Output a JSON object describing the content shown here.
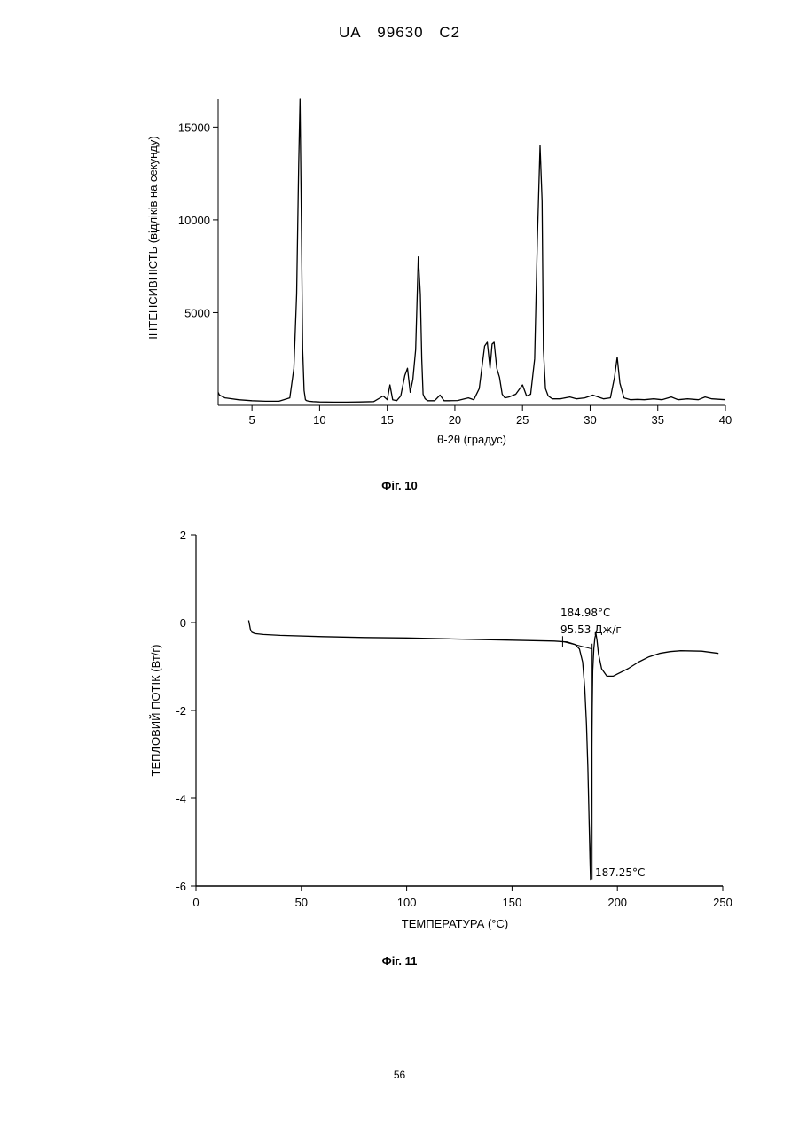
{
  "header": {
    "country": "UA",
    "number": "99630",
    "kind": "C2"
  },
  "page_number": "56",
  "chart_data": [
    {
      "type": "line",
      "caption": "Фіг. 10",
      "xlabel": "θ-2θ (градус)",
      "ylabel": "ІНТЕНСИВНІСТЬ (відліків на секунду)",
      "xlim": [
        2.5,
        40
      ],
      "ylim": [
        0,
        16500
      ],
      "xticks": [
        5,
        10,
        15,
        20,
        25,
        30,
        35,
        40
      ],
      "yticks": [
        5000,
        10000,
        15000
      ],
      "series": [
        {
          "x": [
            2.5,
            2.6,
            3.0,
            4.0,
            5.0,
            6.0,
            7.0,
            7.8,
            8.1,
            8.3,
            8.45,
            8.55,
            8.65,
            8.75,
            8.85,
            8.95,
            9.05,
            9.2,
            9.5,
            10.0,
            11.0,
            12.0,
            13.0,
            14.0,
            14.7,
            15.0,
            15.2,
            15.4,
            15.7,
            16.0,
            16.3,
            16.5,
            16.7,
            16.9,
            17.1,
            17.3,
            17.45,
            17.55,
            17.65,
            17.8,
            18.0,
            18.5,
            18.9,
            19.2,
            19.6,
            20.2,
            21.0,
            21.4,
            21.8,
            22.2,
            22.4,
            22.6,
            22.75,
            22.9,
            23.1,
            23.3,
            23.5,
            23.7,
            24.0,
            24.5,
            25.0,
            25.3,
            25.6,
            25.9,
            26.1,
            26.3,
            26.45,
            26.55,
            26.7,
            26.9,
            27.2,
            27.8,
            28.5,
            29.0,
            29.6,
            30.2,
            30.6,
            31.0,
            31.5,
            31.8,
            32.0,
            32.2,
            32.5,
            33.0,
            33.5,
            34.0,
            34.7,
            35.3,
            36.0,
            36.5,
            37.2,
            38.0,
            38.5,
            39.0,
            40.0
          ],
          "y": [
            700,
            550,
            400,
            300,
            250,
            220,
            220,
            400,
            2000,
            6000,
            13000,
            16500,
            10000,
            3000,
            800,
            300,
            250,
            220,
            200,
            180,
            170,
            170,
            180,
            200,
            500,
            300,
            1100,
            300,
            250,
            500,
            1600,
            2000,
            700,
            1400,
            3000,
            8000,
            6000,
            2500,
            600,
            350,
            250,
            250,
            550,
            250,
            250,
            260,
            400,
            300,
            900,
            3200,
            3400,
            2000,
            3300,
            3400,
            2000,
            1500,
            600,
            400,
            450,
            600,
            1100,
            500,
            600,
            2500,
            9000,
            14000,
            11000,
            3000,
            900,
            500,
            350,
            350,
            450,
            350,
            400,
            550,
            450,
            350,
            400,
            1500,
            2600,
            1200,
            400,
            300,
            320,
            300,
            350,
            300,
            450,
            300,
            350,
            300,
            450,
            350,
            300
          ]
        }
      ]
    },
    {
      "type": "line",
      "caption": "Фіг. 11",
      "xlabel": "ТЕМПЕРАТУРА (°C)",
      "ylabel": "ТЕПЛОВИЙ ПОТІК (Вт/г)",
      "xlim": [
        0,
        250
      ],
      "ylim": [
        -6,
        2
      ],
      "xticks": [
        0,
        50,
        100,
        150,
        200,
        250
      ],
      "yticks": [
        -6,
        -4,
        -2,
        0,
        2
      ],
      "annotations": {
        "onset": "184.98°C",
        "enthalpy": "95.53 Дж/г",
        "peak": "187.25°C"
      },
      "series": [
        {
          "x": [
            25,
            25.3,
            25.8,
            26.5,
            28,
            32,
            40,
            60,
            80,
            100,
            120,
            140,
            160,
            170,
            176,
            180,
            182,
            183.5,
            184.5,
            185.3,
            186,
            186.6,
            187.0,
            187.25,
            187.5,
            187.9,
            188.3,
            188.8,
            189.3,
            189.8,
            190.3,
            191,
            192.5,
            195,
            198,
            200,
            205,
            210,
            215,
            220,
            225,
            230,
            240,
            248
          ],
          "y": [
            0.05,
            -0.02,
            -0.15,
            -0.22,
            -0.25,
            -0.27,
            -0.29,
            -0.32,
            -0.34,
            -0.35,
            -0.37,
            -0.39,
            -0.41,
            -0.42,
            -0.44,
            -0.5,
            -0.6,
            -0.9,
            -1.5,
            -2.3,
            -3.3,
            -4.6,
            -5.4,
            -5.85,
            -4.8,
            -2.5,
            -1.1,
            -0.6,
            -0.35,
            -0.25,
            -0.4,
            -0.7,
            -1.05,
            -1.22,
            -1.22,
            -1.17,
            -1.05,
            -0.9,
            -0.78,
            -0.7,
            -0.66,
            -0.64,
            -0.65,
            -0.7
          ]
        }
      ],
      "baseline": {
        "x": [
          174,
          188
        ],
        "y": [
          -0.43,
          -0.6
        ]
      }
    }
  ]
}
